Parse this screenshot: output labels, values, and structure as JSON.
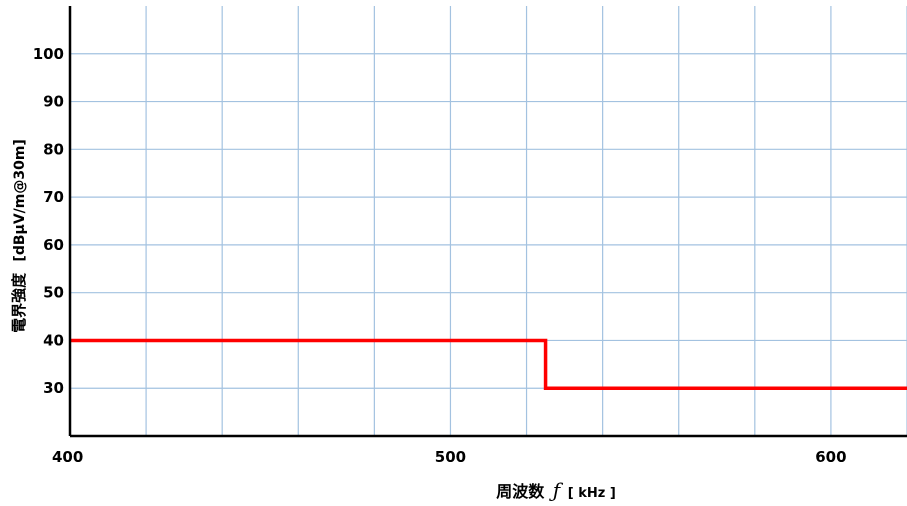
{
  "chart_data": {
    "type": "line",
    "xlabel": "周波数",
    "xlabel_symbol": "ƒ",
    "xlabel_unit": "[ kHz ]",
    "ylabel": "電界強度",
    "ylabel_unit": "[dBμV/m@30m]",
    "xlim": [
      400,
      620
    ],
    "ylim": [
      20,
      110
    ],
    "x_ticks": [
      400,
      500,
      600
    ],
    "y_ticks": [
      30,
      40,
      50,
      60,
      70,
      80,
      90,
      100
    ],
    "grid": true,
    "series": [
      {
        "x": [
          400,
          525,
          525,
          620
        ],
        "y": [
          40,
          40,
          30,
          30
        ]
      }
    ],
    "colors": {
      "series": "#ff0000",
      "grid": "#a3c2e0",
      "axis": "#000000"
    }
  }
}
